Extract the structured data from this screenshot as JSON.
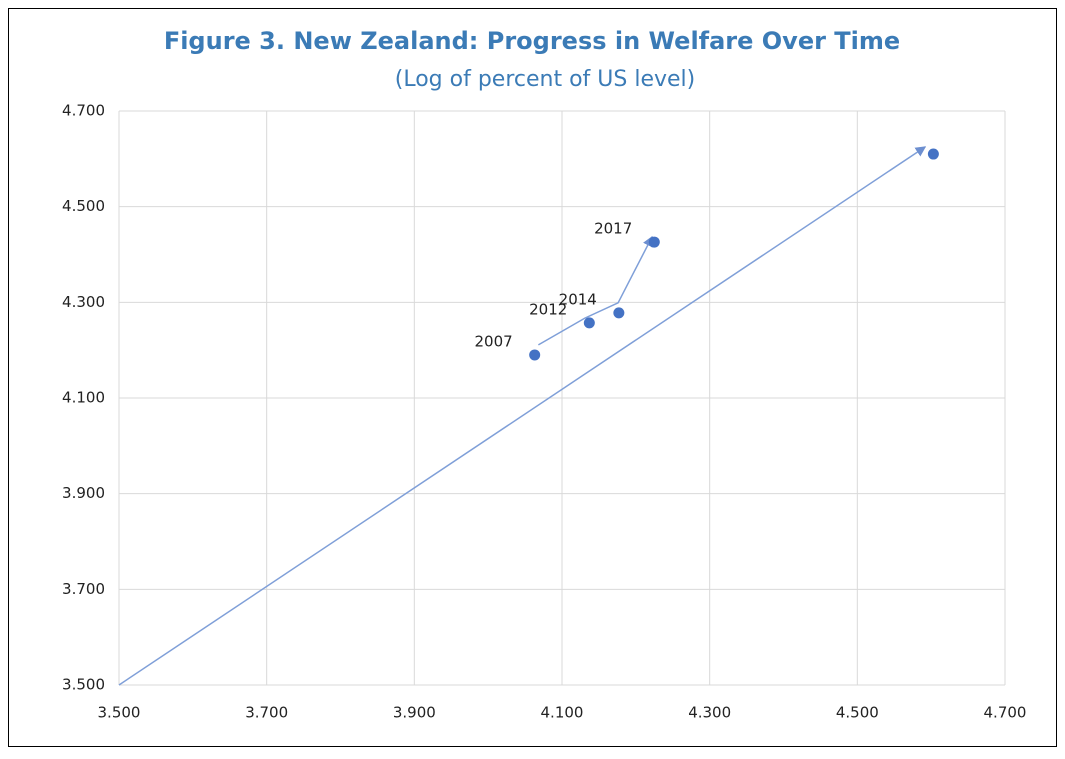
{
  "chart_data": {
    "type": "scatter",
    "title": "Figure 3. New Zealand: Progress in Welfare Over Time",
    "subtitle": "(Log of percent of US level)",
    "xlim": [
      3.5,
      4.7
    ],
    "ylim": [
      3.5,
      4.7
    ],
    "xticks": [
      {
        "value": 3.5,
        "label": "3.500"
      },
      {
        "value": 3.7,
        "label": "3.700"
      },
      {
        "value": 3.9,
        "label": "3.900"
      },
      {
        "value": 4.1,
        "label": "4.100"
      },
      {
        "value": 4.3,
        "label": "4.300"
      },
      {
        "value": 4.5,
        "label": "4.500"
      },
      {
        "value": 4.7,
        "label": "4.700"
      }
    ],
    "yticks": [
      {
        "value": 3.5,
        "label": "3.500"
      },
      {
        "value": 3.7,
        "label": "3.700"
      },
      {
        "value": 3.9,
        "label": "3.900"
      },
      {
        "value": 4.1,
        "label": "4.100"
      },
      {
        "value": 4.3,
        "label": "4.300"
      },
      {
        "value": 4.5,
        "label": "4.500"
      },
      {
        "value": 4.7,
        "label": "4.700"
      }
    ],
    "grid": true,
    "series": [
      {
        "color": "#4472c4",
        "x": [
          4.063,
          4.137,
          4.177,
          4.225,
          4.603
        ],
        "values": [
          4.19,
          4.257,
          4.278,
          4.426,
          4.61
        ],
        "labels": [
          "2007",
          "2012",
          "2014",
          "2017",
          null
        ]
      }
    ],
    "arrows": [
      {
        "color": "#7f9fd8",
        "x": [
          3.5,
          4.592
        ],
        "values": [
          3.5,
          4.625
        ]
      },
      {
        "color": "#7f9fd8",
        "x": [
          4.068,
          4.131,
          4.176,
          4.222
        ],
        "values": [
          4.211,
          4.267,
          4.299,
          4.437
        ]
      }
    ]
  }
}
